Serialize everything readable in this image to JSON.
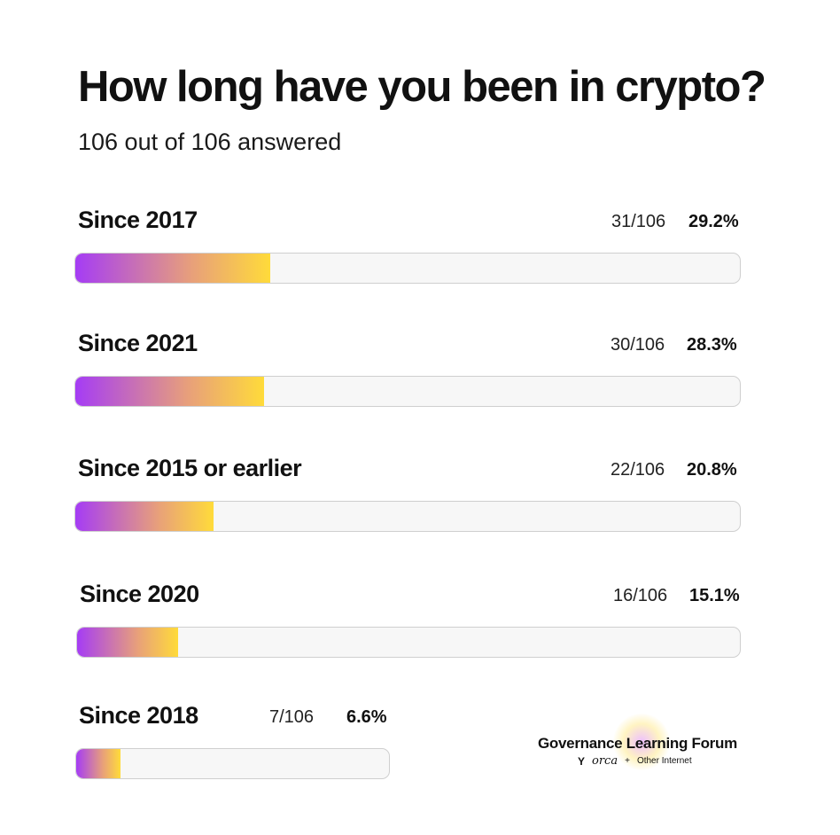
{
  "chart_data": {
    "type": "bar",
    "orientation": "horizontal",
    "title": "How long have you been in crypto?",
    "subtitle": "106 out of 106 answered",
    "total": 106,
    "categories": [
      "Since 2017",
      "Since 2021",
      "Since 2015 or earlier",
      "Since 2020",
      "Since 2018"
    ],
    "values": [
      31,
      30,
      22,
      16,
      7
    ],
    "counts": [
      "31/106",
      "30/106",
      "22/106",
      "16/106",
      "7/106"
    ],
    "percents": [
      "29.2%",
      "28.3%",
      "20.8%",
      "15.1%",
      "6.6%"
    ],
    "colors": {
      "gradient_start": "#a53cf5",
      "gradient_mid": "#e8a07a",
      "gradient_end": "#ffdb3a",
      "track": "#f7f7f7"
    }
  },
  "branding": {
    "title": "Governance Learning Forum",
    "partner_1": "orca",
    "separator": "+",
    "partner_2": "Other Internet",
    "icon": "orca-tail-icon"
  }
}
